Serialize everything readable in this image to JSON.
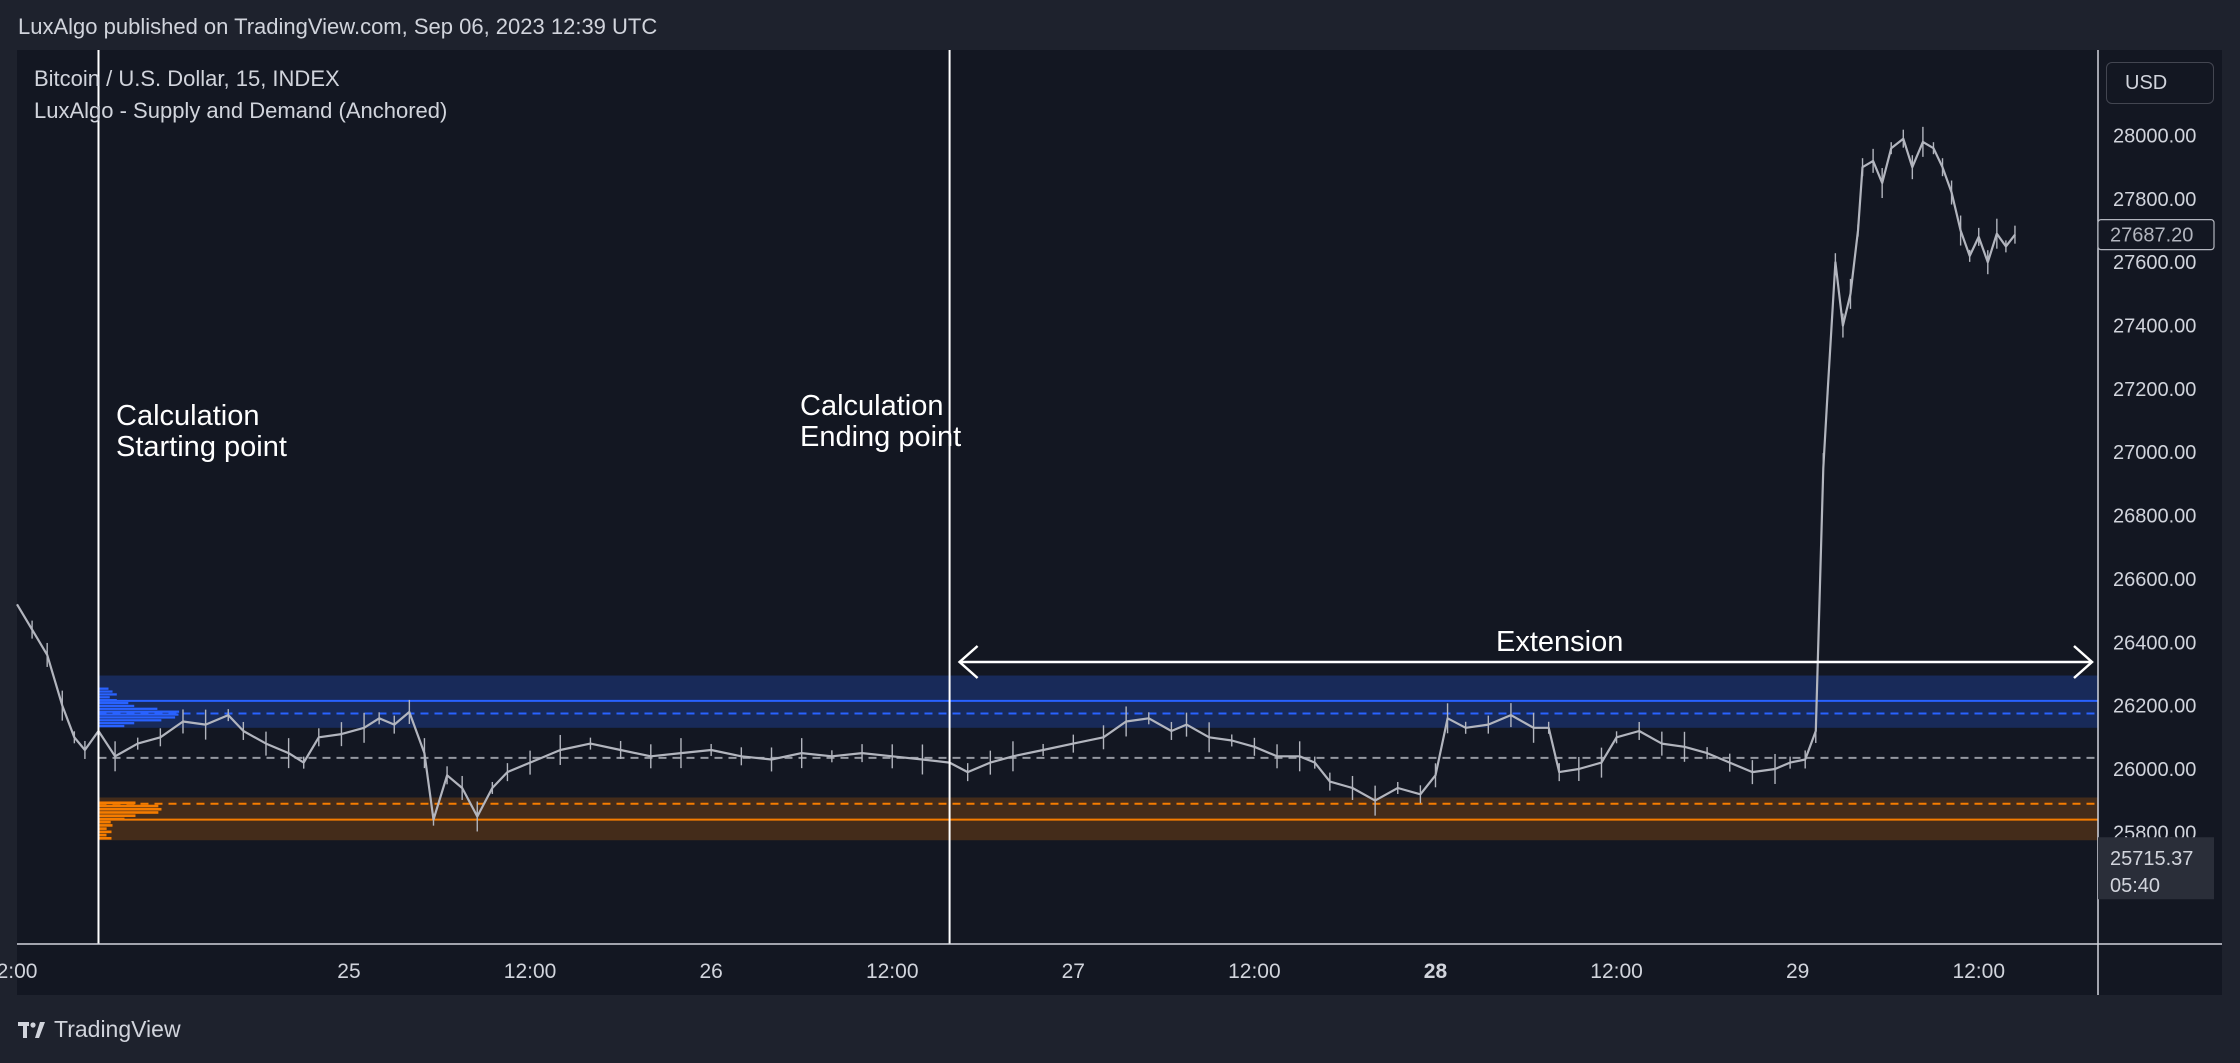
{
  "header": {
    "published": "LuxAlgo published on TradingView.com, Sep 06, 2023 12:39 UTC"
  },
  "legend": {
    "symbol": "Bitcoin / U.S. Dollar, 15, INDEX",
    "indicator": "LuxAlgo - Supply and Demand (Anchored)"
  },
  "currency_button": "USD",
  "annotations": {
    "start": [
      "Calculation",
      "Starting point"
    ],
    "end": [
      "Calculation",
      "Ending point"
    ],
    "extension": "Extension"
  },
  "price_labels": {
    "last_price": "27687.20",
    "countdown_price": "25715.37",
    "countdown_time": "05:40"
  },
  "footer": {
    "brand": "TradingView"
  },
  "colors": {
    "background": "#131722",
    "candle": "#b2b5be",
    "supply": "#2962ff",
    "demand": "#f57c00",
    "annotation": "#ffffff"
  },
  "chart_data": {
    "type": "line",
    "title": "",
    "y_ticks": [
      28000,
      27800,
      27600,
      27400,
      27200,
      27000,
      26800,
      26600,
      26400,
      26200,
      26000,
      25800
    ],
    "y_tick_labels": [
      "28000.00",
      "27800.00",
      "27600.00",
      "27400.00",
      "27200.00",
      "27000.00",
      "26800.00",
      "26600.00",
      "26400.00",
      "26200.00",
      "26000.00",
      "25800.00"
    ],
    "ylim": [
      25460,
      28270
    ],
    "x_tick_labels": [
      {
        "label": "2:00",
        "t": 2,
        "bold": false
      },
      {
        "label": "25",
        "t": 24,
        "bold": false
      },
      {
        "label": "12:00",
        "t": 36,
        "bold": false
      },
      {
        "label": "26",
        "t": 48,
        "bold": false
      },
      {
        "label": "12:00",
        "t": 60,
        "bold": false
      },
      {
        "label": "27",
        "t": 72,
        "bold": false
      },
      {
        "label": "12:00",
        "t": 84,
        "bold": false
      },
      {
        "label": "28",
        "t": 96,
        "bold": true
      },
      {
        "label": "12:00",
        "t": 108,
        "bold": false
      },
      {
        "label": "29",
        "t": 120,
        "bold": false
      },
      {
        "label": "12:00",
        "t": 132,
        "bold": false
      }
    ],
    "xlim": [
      2,
      146
    ],
    "anchor_start_t": 7.4,
    "anchor_end_t": 63.8,
    "zones": {
      "supply": {
        "top": 26295,
        "bottom": 26130,
        "dashed": 26175,
        "solid": 26215
      },
      "demand": {
        "top": 25910,
        "bottom": 25775,
        "dashed": 25890,
        "solid": 25840
      },
      "equilibrium": 26035
    },
    "series": [
      {
        "values": [
          [
            2.0,
            26520
          ],
          [
            3.0,
            26440
          ],
          [
            4.0,
            26360
          ],
          [
            5.0,
            26200
          ],
          [
            5.8,
            26100
          ],
          [
            6.5,
            26060
          ],
          [
            7.4,
            26120
          ],
          [
            8.5,
            26040
          ],
          [
            10.0,
            26080
          ],
          [
            11.5,
            26100
          ],
          [
            13.0,
            26150
          ],
          [
            14.5,
            26140
          ],
          [
            16.0,
            26170
          ],
          [
            17.0,
            26120
          ],
          [
            18.5,
            26080
          ],
          [
            20.0,
            26050
          ],
          [
            21.0,
            26020
          ],
          [
            22.0,
            26100
          ],
          [
            23.5,
            26110
          ],
          [
            25.0,
            26130
          ],
          [
            26.0,
            26160
          ],
          [
            27.0,
            26140
          ],
          [
            28.0,
            26180
          ],
          [
            29.0,
            26050
          ],
          [
            29.6,
            25840
          ],
          [
            30.5,
            25980
          ],
          [
            31.5,
            25940
          ],
          [
            32.5,
            25850
          ],
          [
            33.5,
            25940
          ],
          [
            34.5,
            25990
          ],
          [
            36.0,
            26020
          ],
          [
            38.0,
            26060
          ],
          [
            40.0,
            26080
          ],
          [
            42.0,
            26060
          ],
          [
            44.0,
            26040
          ],
          [
            46.0,
            26050
          ],
          [
            48.0,
            26060
          ],
          [
            50.0,
            26040
          ],
          [
            52.0,
            26030
          ],
          [
            54.0,
            26050
          ],
          [
            56.0,
            26040
          ],
          [
            58.0,
            26050
          ],
          [
            60.0,
            26040
          ],
          [
            62.0,
            26030
          ],
          [
            63.8,
            26020
          ],
          [
            65.0,
            25990
          ],
          [
            66.5,
            26020
          ],
          [
            68.0,
            26040
          ],
          [
            70.0,
            26060
          ],
          [
            72.0,
            26080
          ],
          [
            74.0,
            26100
          ],
          [
            75.5,
            26150
          ],
          [
            77.0,
            26160
          ],
          [
            78.5,
            26120
          ],
          [
            79.5,
            26140
          ],
          [
            81.0,
            26100
          ],
          [
            82.5,
            26090
          ],
          [
            84.0,
            26070
          ],
          [
            85.5,
            26040
          ],
          [
            87.0,
            26040
          ],
          [
            88.0,
            26020
          ],
          [
            89.0,
            25960
          ],
          [
            90.5,
            25940
          ],
          [
            92.0,
            25900
          ],
          [
            93.5,
            25940
          ],
          [
            95.0,
            25920
          ],
          [
            96.0,
            25980
          ],
          [
            96.8,
            26160
          ],
          [
            98.0,
            26130
          ],
          [
            99.5,
            26140
          ],
          [
            101.0,
            26170
          ],
          [
            102.5,
            26130
          ],
          [
            103.5,
            26130
          ],
          [
            104.2,
            25990
          ],
          [
            105.5,
            26000
          ],
          [
            107.0,
            26020
          ],
          [
            108.0,
            26100
          ],
          [
            109.5,
            26120
          ],
          [
            111.0,
            26080
          ],
          [
            112.5,
            26070
          ],
          [
            114.0,
            26050
          ],
          [
            115.5,
            26020
          ],
          [
            117.0,
            25990
          ],
          [
            118.5,
            26000
          ],
          [
            119.5,
            26020
          ],
          [
            120.5,
            26030
          ],
          [
            121.2,
            26120
          ],
          [
            121.7,
            26950
          ],
          [
            122.0,
            27200
          ],
          [
            122.5,
            27600
          ],
          [
            123.0,
            27400
          ],
          [
            123.5,
            27500
          ],
          [
            124.0,
            27700
          ],
          [
            124.3,
            27900
          ],
          [
            125.0,
            27920
          ],
          [
            125.6,
            27850
          ],
          [
            126.2,
            27960
          ],
          [
            127.0,
            27990
          ],
          [
            127.6,
            27900
          ],
          [
            128.3,
            27980
          ],
          [
            129.0,
            27960
          ],
          [
            129.6,
            27900
          ],
          [
            130.2,
            27820
          ],
          [
            130.8,
            27700
          ],
          [
            131.4,
            27620
          ],
          [
            132.0,
            27680
          ],
          [
            132.6,
            27600
          ],
          [
            133.2,
            27690
          ],
          [
            133.8,
            27650
          ],
          [
            134.4,
            27687
          ]
        ]
      }
    ]
  }
}
